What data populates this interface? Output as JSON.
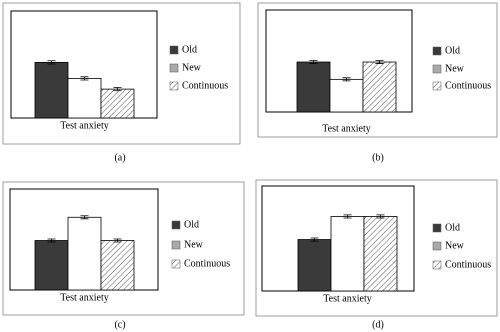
{
  "chart_data": [
    {
      "type": "bar",
      "caption": "(a)",
      "categories": [
        "Test anxiety"
      ],
      "ylim": [
        0,
        100
      ],
      "series": [
        {
          "name": "Old",
          "color": "#3a3a3a",
          "pattern": "solid",
          "values": [
            52
          ],
          "errors": [
            1.5
          ]
        },
        {
          "name": "New",
          "color": "#ffffff",
          "pattern": "solid",
          "values": [
            37
          ],
          "errors": [
            1.5
          ]
        },
        {
          "name": "Continuous",
          "color": "#ffffff",
          "pattern": "hatch",
          "values": [
            27
          ],
          "errors": [
            1.5
          ]
        }
      ]
    },
    {
      "type": "bar",
      "caption": "(b)",
      "categories": [
        "Test anxiety"
      ],
      "ylim": [
        0,
        100
      ],
      "series": [
        {
          "name": "Old",
          "color": "#3a3a3a",
          "pattern": "solid",
          "values": [
            49
          ],
          "errors": [
            1.5
          ]
        },
        {
          "name": "New",
          "color": "#ffffff",
          "pattern": "solid",
          "values": [
            32
          ],
          "errors": [
            1.5
          ]
        },
        {
          "name": "Continuous",
          "color": "#ffffff",
          "pattern": "hatch",
          "values": [
            49
          ],
          "errors": [
            1.5
          ]
        }
      ]
    },
    {
      "type": "bar",
      "caption": "(c)",
      "categories": [
        "Test anxiety"
      ],
      "ylim": [
        0,
        100
      ],
      "series": [
        {
          "name": "Old",
          "color": "#3a3a3a",
          "pattern": "solid",
          "values": [
            49
          ],
          "errors": [
            1.5
          ]
        },
        {
          "name": "New",
          "color": "#ffffff",
          "pattern": "solid",
          "values": [
            72
          ],
          "errors": [
            1.5
          ]
        },
        {
          "name": "Continuous",
          "color": "#ffffff",
          "pattern": "hatch",
          "values": [
            49
          ],
          "errors": [
            1.5
          ]
        }
      ]
    },
    {
      "type": "bar",
      "caption": "(d)",
      "categories": [
        "Test anxiety"
      ],
      "ylim": [
        0,
        100
      ],
      "series": [
        {
          "name": "Old",
          "color": "#3a3a3a",
          "pattern": "solid",
          "values": [
            49
          ],
          "errors": [
            1.5
          ]
        },
        {
          "name": "New",
          "color": "#ffffff",
          "pattern": "solid",
          "values": [
            71
          ],
          "errors": [
            1.5
          ]
        },
        {
          "name": "Continuous",
          "color": "#ffffff",
          "pattern": "hatch",
          "values": [
            71
          ],
          "errors": [
            1.5
          ]
        }
      ]
    }
  ]
}
